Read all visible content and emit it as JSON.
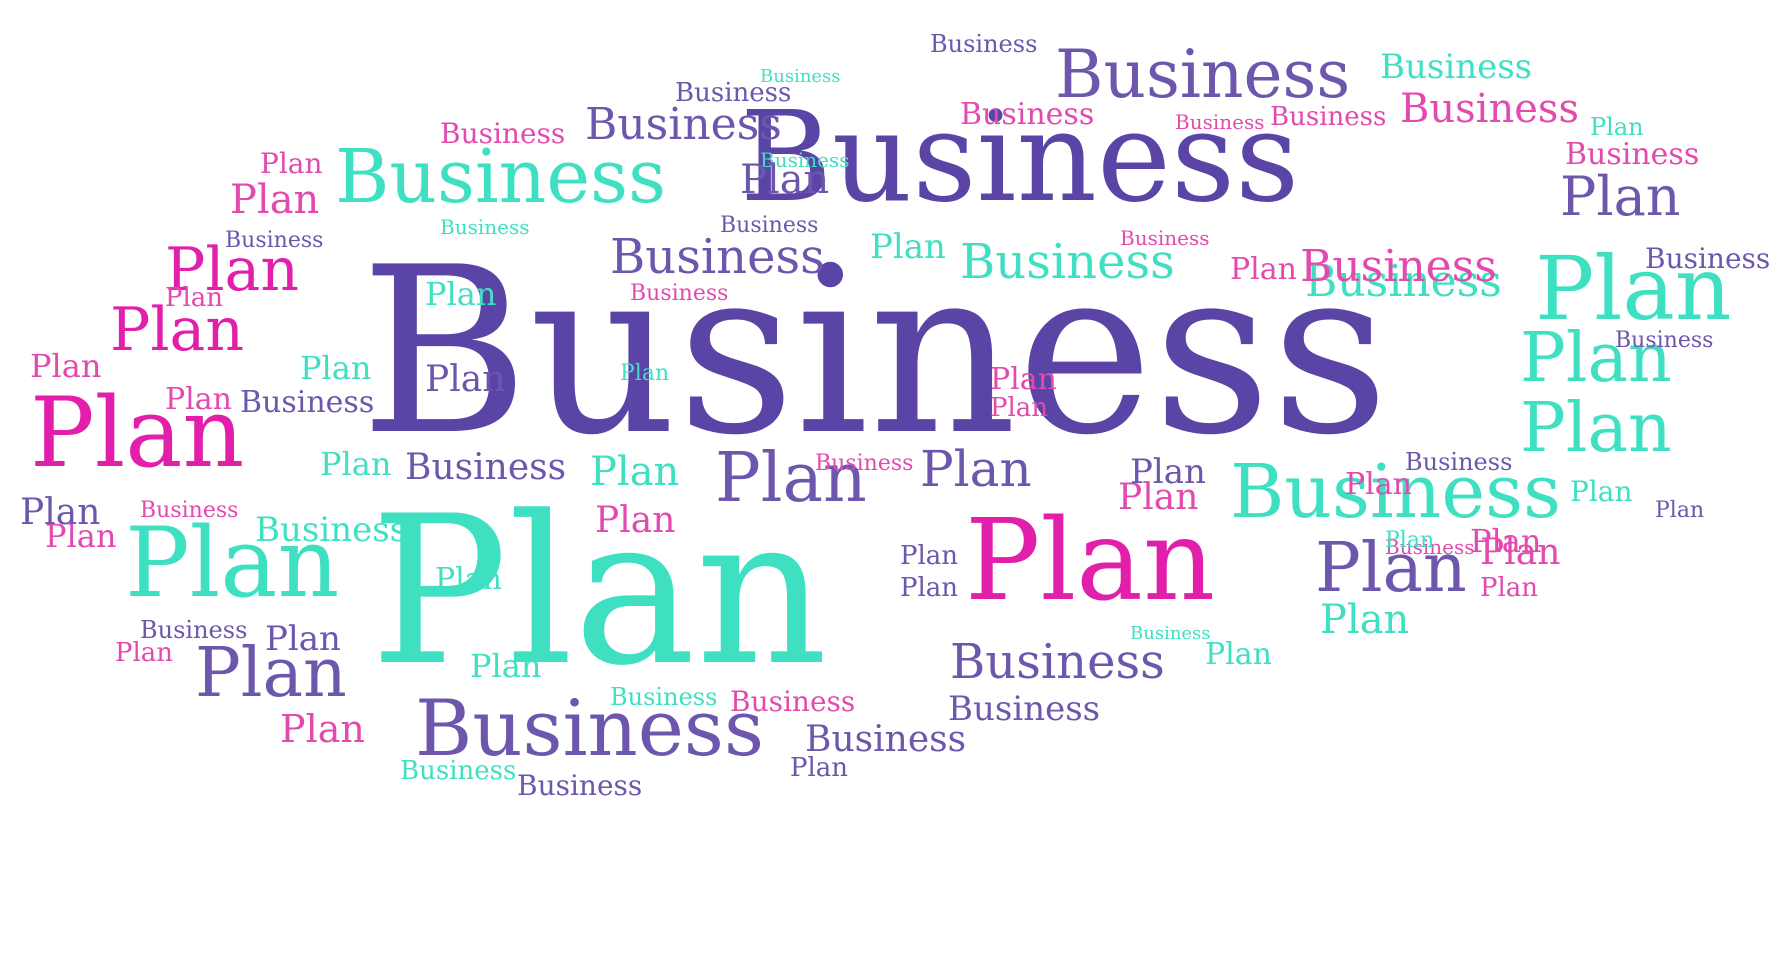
{
  "colors": {
    "purple": "#5a44a6",
    "violet": "#6d57ad",
    "teal": "#3fe0c2",
    "magenta": "#e21fab",
    "pink": "#e34aae",
    "background": "#ffffff"
  },
  "words": [
    {
      "text": "Business",
      "color": "purple"
    },
    {
      "text": "Plan",
      "color": "teal"
    },
    {
      "text": "Business",
      "color": "purple"
    },
    {
      "text": "Business",
      "color": "violet"
    },
    {
      "text": "Plan",
      "color": "magenta"
    },
    {
      "text": "Business",
      "color": "teal"
    },
    {
      "text": "Business",
      "color": "teal"
    },
    {
      "text": "Business",
      "color": "violet"
    },
    {
      "text": "Plan",
      "color": "magenta"
    },
    {
      "text": "Plan",
      "color": "teal"
    },
    {
      "text": "Business",
      "color": "violet"
    },
    {
      "text": "Business",
      "color": "violet"
    },
    {
      "text": "Business",
      "color": "teal"
    },
    {
      "text": "Plan",
      "color": "teal"
    },
    {
      "text": "Plan",
      "color": "violet"
    },
    {
      "text": "Plan",
      "color": "violet"
    },
    {
      "text": "Plan",
      "color": "violet"
    },
    {
      "text": "Plan",
      "color": "teal"
    },
    {
      "text": "Plan",
      "color": "teal"
    },
    {
      "text": "Plan",
      "color": "magenta"
    },
    {
      "text": "Plan",
      "color": "magenta"
    },
    {
      "text": "Business",
      "color": "violet"
    },
    {
      "text": "Business",
      "color": "teal"
    },
    {
      "text": "Business",
      "color": "pink"
    },
    {
      "text": "Business",
      "color": "pink"
    },
    {
      "text": "Business",
      "color": "violet"
    },
    {
      "text": "Business",
      "color": "violet"
    },
    {
      "text": "Business",
      "color": "violet"
    },
    {
      "text": "Plan",
      "color": "violet"
    },
    {
      "text": "Plan",
      "color": "violet"
    },
    {
      "text": "Plan",
      "color": "violet"
    },
    {
      "text": "Plan",
      "color": "pink"
    },
    {
      "text": "Plan",
      "color": "pink"
    },
    {
      "text": "Plan",
      "color": "pink"
    },
    {
      "text": "Plan",
      "color": "teal"
    },
    {
      "text": "Plan",
      "color": "teal"
    },
    {
      "text": "Plan",
      "color": "teal"
    },
    {
      "text": "Plan",
      "color": "pink"
    },
    {
      "text": "Plan",
      "color": "pink"
    },
    {
      "text": "Plan",
      "color": "pink"
    },
    {
      "text": "Plan",
      "color": "violet"
    },
    {
      "text": "Business",
      "color": "pink"
    },
    {
      "text": "Business",
      "color": "pink"
    },
    {
      "text": "Business",
      "color": "pink"
    },
    {
      "text": "Business",
      "color": "teal"
    },
    {
      "text": "Business",
      "color": "violet"
    },
    {
      "text": "Business",
      "color": "violet"
    },
    {
      "text": "Business",
      "color": "violet"
    },
    {
      "text": "Business",
      "color": "violet"
    },
    {
      "text": "Business",
      "color": "violet"
    },
    {
      "text": "Business",
      "color": "violet"
    },
    {
      "text": "Business",
      "color": "pink"
    },
    {
      "text": "Business",
      "color": "pink"
    },
    {
      "text": "Business",
      "color": "pink"
    },
    {
      "text": "Business",
      "color": "pink"
    },
    {
      "text": "Business",
      "color": "pink"
    },
    {
      "text": "Business",
      "color": "pink"
    },
    {
      "text": "Business",
      "color": "pink"
    },
    {
      "text": "Business",
      "color": "teal"
    },
    {
      "text": "Business",
      "color": "teal"
    },
    {
      "text": "Business",
      "color": "teal"
    },
    {
      "text": "Business",
      "color": "teal"
    },
    {
      "text": "Business",
      "color": "teal"
    },
    {
      "text": "Business",
      "color": "teal"
    },
    {
      "text": "Business",
      "color": "teal"
    },
    {
      "text": "Business",
      "color": "pink"
    },
    {
      "text": "Business",
      "color": "violet"
    },
    {
      "text": "Business",
      "color": "violet"
    },
    {
      "text": "Business",
      "color": "violet"
    },
    {
      "text": "Business",
      "color": "violet"
    },
    {
      "text": "Plan",
      "color": "pink"
    },
    {
      "text": "Plan",
      "color": "pink"
    },
    {
      "text": "Plan",
      "color": "pink"
    },
    {
      "text": "Plan",
      "color": "pink"
    },
    {
      "text": "Plan",
      "color": "pink"
    },
    {
      "text": "Plan",
      "color": "pink"
    },
    {
      "text": "Plan",
      "color": "pink"
    },
    {
      "text": "Plan",
      "color": "pink"
    },
    {
      "text": "Plan",
      "color": "pink"
    },
    {
      "text": "Plan",
      "color": "pink"
    },
    {
      "text": "Plan",
      "color": "pink"
    },
    {
      "text": "Plan",
      "color": "teal"
    },
    {
      "text": "Plan",
      "color": "teal"
    },
    {
      "text": "Plan",
      "color": "teal"
    },
    {
      "text": "Plan",
      "color": "teal"
    },
    {
      "text": "Plan",
      "color": "teal"
    },
    {
      "text": "Plan",
      "color": "teal"
    },
    {
      "text": "Plan",
      "color": "teal"
    },
    {
      "text": "Plan",
      "color": "teal"
    },
    {
      "text": "Plan",
      "color": "teal"
    },
    {
      "text": "Plan",
      "color": "teal"
    },
    {
      "text": "Plan",
      "color": "violet"
    },
    {
      "text": "Plan",
      "color": "violet"
    },
    {
      "text": "Plan",
      "color": "violet"
    },
    {
      "text": "Plan",
      "color": "violet"
    },
    {
      "text": "Plan",
      "color": "violet"
    },
    {
      "text": "Plan",
      "color": "violet"
    },
    {
      "text": "Plan",
      "color": "violet"
    }
  ]
}
